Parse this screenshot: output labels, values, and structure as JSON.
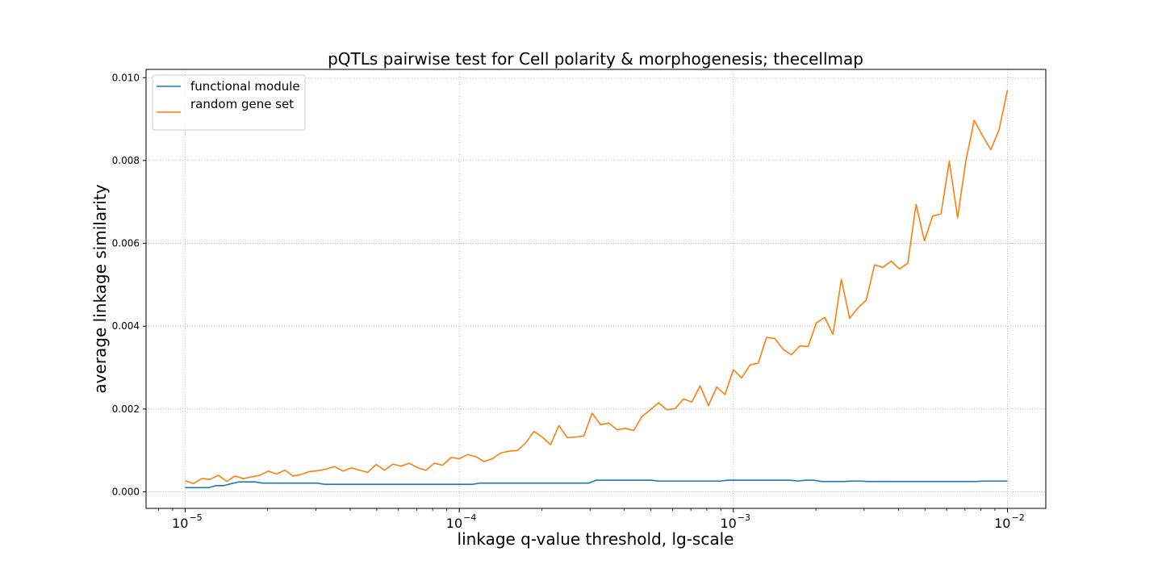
{
  "chart_data": {
    "type": "line",
    "title": "pQTLs pairwise test for Cell polarity & morphogenesis; thecellmap",
    "xlabel": "linkage q-value threshold, lg-scale",
    "ylabel": "average linkage similarity",
    "x_scale": "log",
    "xlim": [
      7.2e-06,
      0.0138
    ],
    "ylim": [
      -0.0004,
      0.0102
    ],
    "x_ticks": [
      {
        "value": 1e-05,
        "base": "10",
        "exp": "−5"
      },
      {
        "value": 0.0001,
        "base": "10",
        "exp": "−4"
      },
      {
        "value": 0.001,
        "base": "10",
        "exp": "−3"
      },
      {
        "value": 0.01,
        "base": "10",
        "exp": "−2"
      }
    ],
    "y_ticks": [
      "0.000",
      "0.002",
      "0.004",
      "0.006",
      "0.008",
      "0.010"
    ],
    "grid": true,
    "legend_position": "top-left",
    "x_start": 1e-05,
    "x_end": 0.01,
    "series": [
      {
        "name": "functional module",
        "color": "#1f77b4",
        "values": [
          0.0001,
          0.0001,
          0.0001,
          0.0001,
          0.00015,
          0.00015,
          0.0002,
          0.00024,
          0.00024,
          0.00024,
          0.00021,
          0.00021,
          0.00021,
          0.00021,
          0.00021,
          0.00021,
          0.00021,
          0.00021,
          0.00018,
          0.00018,
          0.00018,
          0.00018,
          0.00018,
          0.00018,
          0.00018,
          0.00018,
          0.00018,
          0.00018,
          0.00018,
          0.00018,
          0.00018,
          0.00018,
          0.00018,
          0.00018,
          0.00018,
          0.00018,
          0.00018,
          0.00018,
          0.00021,
          0.00021,
          0.00021,
          0.00021,
          0.00021,
          0.00021,
          0.00021,
          0.00021,
          0.00021,
          0.00021,
          0.00021,
          0.00021,
          0.00021,
          0.00021,
          0.00021,
          0.00028,
          0.00028,
          0.00028,
          0.00028,
          0.00028,
          0.00028,
          0.00028,
          0.00028,
          0.00026,
          0.00026,
          0.00026,
          0.00026,
          0.00026,
          0.00026,
          0.00026,
          0.00026,
          0.00026,
          0.00028,
          0.00028,
          0.00028,
          0.00028,
          0.00028,
          0.00028,
          0.00028,
          0.00028,
          0.00028,
          0.00026,
          0.00028,
          0.00028,
          0.00025,
          0.00025,
          0.00025,
          0.00025,
          0.00026,
          0.00026,
          0.00025,
          0.00025,
          0.00025,
          0.00025,
          0.00025,
          0.00025,
          0.00025,
          0.00025,
          0.00025,
          0.00025,
          0.00025,
          0.00025,
          0.00025,
          0.00025,
          0.00025,
          0.00026,
          0.00026,
          0.00026,
          0.00026
        ]
      },
      {
        "name": "random gene set",
        "color": "#ff7f0e",
        "values": [
          0.00027,
          0.0002,
          0.00032,
          0.0003,
          0.0004,
          0.00025,
          0.00038,
          0.00032,
          0.00036,
          0.0004,
          0.0005,
          0.00043,
          0.00052,
          0.00038,
          0.00042,
          0.00049,
          0.00051,
          0.00055,
          0.00061,
          0.0005,
          0.00058,
          0.00052,
          0.00047,
          0.00066,
          0.00052,
          0.00067,
          0.00062,
          0.00069,
          0.00058,
          0.00052,
          0.00069,
          0.00064,
          0.00083,
          0.0008,
          0.0009,
          0.00085,
          0.00073,
          0.0008,
          0.00094,
          0.00098,
          0.001,
          0.00118,
          0.00146,
          0.00132,
          0.00114,
          0.0016,
          0.00131,
          0.00132,
          0.00135,
          0.0019,
          0.00162,
          0.00166,
          0.0015,
          0.00153,
          0.00148,
          0.00182,
          0.00198,
          0.00215,
          0.00198,
          0.00201,
          0.00224,
          0.00217,
          0.00256,
          0.00208,
          0.00253,
          0.00235,
          0.00295,
          0.00275,
          0.00306,
          0.00311,
          0.00373,
          0.0037,
          0.00344,
          0.00331,
          0.00352,
          0.00351,
          0.00408,
          0.00421,
          0.0038,
          0.00513,
          0.00419,
          0.00444,
          0.00463,
          0.00548,
          0.00542,
          0.00557,
          0.00538,
          0.00552,
          0.00694,
          0.00606,
          0.00666,
          0.00671,
          0.00798,
          0.00662,
          0.008,
          0.00897,
          0.0086,
          0.00826,
          0.00875,
          0.0097
        ]
      }
    ]
  }
}
